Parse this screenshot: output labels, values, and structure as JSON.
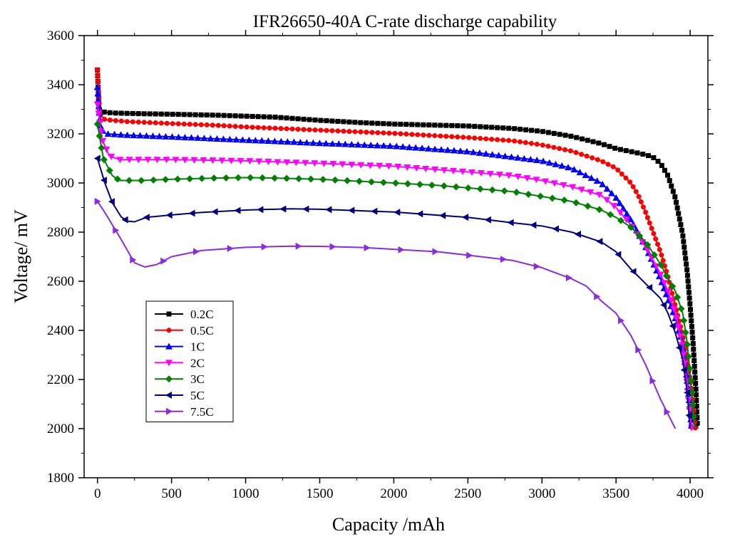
{
  "chart_data": {
    "type": "line",
    "title": "IFR26650-40A C-rate discharge capability",
    "xlabel": "Capacity /mAh",
    "ylabel": "Voltage/ mV",
    "xlim": [
      -90,
      4120
    ],
    "ylim": [
      1800,
      3600
    ],
    "xticks": [
      0,
      500,
      1000,
      1500,
      2000,
      2500,
      3000,
      3500,
      4000
    ],
    "yticks": [
      1800,
      2000,
      2200,
      2400,
      2600,
      2800,
      3000,
      3200,
      3400,
      3600
    ],
    "grid": false,
    "legend_position": "bottom-left",
    "series": [
      {
        "name": "0.2C",
        "color": "#000000",
        "marker": "square",
        "points": [
          [
            0,
            3460
          ],
          [
            10,
            3300
          ],
          [
            30,
            3290
          ],
          [
            100,
            3285
          ],
          [
            300,
            3282
          ],
          [
            500,
            3280
          ],
          [
            800,
            3276
          ],
          [
            1000,
            3272
          ],
          [
            1200,
            3268
          ],
          [
            1500,
            3255
          ],
          [
            1800,
            3245
          ],
          [
            2000,
            3240
          ],
          [
            2500,
            3232
          ],
          [
            2800,
            3222
          ],
          [
            3000,
            3210
          ],
          [
            3200,
            3190
          ],
          [
            3400,
            3160
          ],
          [
            3500,
            3140
          ],
          [
            3600,
            3128
          ],
          [
            3700,
            3115
          ],
          [
            3750,
            3105
          ],
          [
            3800,
            3080
          ],
          [
            3850,
            3030
          ],
          [
            3900,
            2940
          ],
          [
            3950,
            2790
          ],
          [
            3980,
            2640
          ],
          [
            4000,
            2500
          ],
          [
            4020,
            2350
          ],
          [
            4030,
            2250
          ],
          [
            4040,
            2150
          ],
          [
            4050,
            2000
          ]
        ]
      },
      {
        "name": "0.5C",
        "color": "#ff0000",
        "marker": "circle",
        "points": [
          [
            0,
            3460
          ],
          [
            15,
            3280
          ],
          [
            50,
            3258
          ],
          [
            200,
            3250
          ],
          [
            500,
            3242
          ],
          [
            800,
            3235
          ],
          [
            1000,
            3228
          ],
          [
            1500,
            3215
          ],
          [
            2000,
            3202
          ],
          [
            2500,
            3185
          ],
          [
            2800,
            3172
          ],
          [
            3000,
            3155
          ],
          [
            3200,
            3130
          ],
          [
            3400,
            3090
          ],
          [
            3500,
            3060
          ],
          [
            3600,
            3000
          ],
          [
            3650,
            2950
          ],
          [
            3700,
            2880
          ],
          [
            3750,
            2800
          ],
          [
            3800,
            2720
          ],
          [
            3850,
            2620
          ],
          [
            3900,
            2500
          ],
          [
            3950,
            2380
          ],
          [
            3980,
            2280
          ],
          [
            4000,
            2200
          ],
          [
            4020,
            2100
          ],
          [
            4035,
            2000
          ]
        ]
      },
      {
        "name": "1C",
        "color": "#0000ff",
        "marker": "triangle-up",
        "points": [
          [
            0,
            3390
          ],
          [
            20,
            3220
          ],
          [
            60,
            3200
          ],
          [
            200,
            3195
          ],
          [
            500,
            3188
          ],
          [
            800,
            3180
          ],
          [
            1000,
            3175
          ],
          [
            1500,
            3162
          ],
          [
            2000,
            3150
          ],
          [
            2500,
            3128
          ],
          [
            3000,
            3090
          ],
          [
            3200,
            3060
          ],
          [
            3400,
            3000
          ],
          [
            3500,
            2940
          ],
          [
            3600,
            2850
          ],
          [
            3700,
            2740
          ],
          [
            3800,
            2610
          ],
          [
            3850,
            2530
          ],
          [
            3900,
            2450
          ],
          [
            3950,
            2340
          ],
          [
            3980,
            2200
          ],
          [
            4000,
            2080
          ],
          [
            4010,
            2000
          ]
        ]
      },
      {
        "name": "2C",
        "color": "#ff00ff",
        "marker": "triangle-down",
        "points": [
          [
            0,
            3320
          ],
          [
            30,
            3180
          ],
          [
            80,
            3110
          ],
          [
            150,
            3095
          ],
          [
            500,
            3095
          ],
          [
            1000,
            3090
          ],
          [
            1500,
            3080
          ],
          [
            2000,
            3068
          ],
          [
            2500,
            3045
          ],
          [
            2800,
            3030
          ],
          [
            3000,
            3010
          ],
          [
            3200,
            2985
          ],
          [
            3400,
            2950
          ],
          [
            3500,
            2900
          ],
          [
            3600,
            2830
          ],
          [
            3700,
            2740
          ],
          [
            3800,
            2630
          ],
          [
            3850,
            2560
          ],
          [
            3900,
            2470
          ],
          [
            3950,
            2330
          ],
          [
            3980,
            2180
          ],
          [
            4000,
            2050
          ],
          [
            4010,
            2000
          ]
        ]
      },
      {
        "name": "3C",
        "color": "#008000",
        "marker": "diamond",
        "points": [
          [
            0,
            3240
          ],
          [
            40,
            3100
          ],
          [
            100,
            3030
          ],
          [
            150,
            3010
          ],
          [
            300,
            3010
          ],
          [
            500,
            3015
          ],
          [
            800,
            3020
          ],
          [
            1000,
            3022
          ],
          [
            1200,
            3020
          ],
          [
            1500,
            3015
          ],
          [
            2000,
            3000
          ],
          [
            2300,
            2990
          ],
          [
            2500,
            2980
          ],
          [
            2800,
            2965
          ],
          [
            3000,
            2945
          ],
          [
            3200,
            2925
          ],
          [
            3400,
            2890
          ],
          [
            3500,
            2860
          ],
          [
            3600,
            2820
          ],
          [
            3700,
            2760
          ],
          [
            3800,
            2670
          ],
          [
            3850,
            2610
          ],
          [
            3900,
            2560
          ],
          [
            3950,
            2470
          ],
          [
            3980,
            2350
          ],
          [
            4000,
            2220
          ],
          [
            4020,
            2080
          ],
          [
            4030,
            2000
          ]
        ]
      },
      {
        "name": "5C",
        "color": "#000080",
        "marker": "triangle-left",
        "points": [
          [
            0,
            3100
          ],
          [
            50,
            3000
          ],
          [
            100,
            2920
          ],
          [
            160,
            2862
          ],
          [
            200,
            2845
          ],
          [
            250,
            2842
          ],
          [
            330,
            2860
          ],
          [
            500,
            2870
          ],
          [
            700,
            2880
          ],
          [
            1000,
            2890
          ],
          [
            1300,
            2895
          ],
          [
            1500,
            2893
          ],
          [
            2000,
            2882
          ],
          [
            2500,
            2860
          ],
          [
            2800,
            2838
          ],
          [
            3000,
            2825
          ],
          [
            3200,
            2800
          ],
          [
            3400,
            2760
          ],
          [
            3500,
            2720
          ],
          [
            3600,
            2650
          ],
          [
            3700,
            2590
          ],
          [
            3800,
            2530
          ],
          [
            3850,
            2470
          ],
          [
            3900,
            2390
          ],
          [
            3950,
            2280
          ],
          [
            3980,
            2150
          ],
          [
            4000,
            2000
          ]
        ]
      },
      {
        "name": "7.5C",
        "color": "#8a2be2",
        "marker": "triangle-right",
        "points": [
          [
            0,
            2925
          ],
          [
            50,
            2880
          ],
          [
            150,
            2780
          ],
          [
            250,
            2675
          ],
          [
            320,
            2658
          ],
          [
            400,
            2668
          ],
          [
            500,
            2700
          ],
          [
            700,
            2725
          ],
          [
            1000,
            2738
          ],
          [
            1300,
            2743
          ],
          [
            1500,
            2742
          ],
          [
            1800,
            2737
          ],
          [
            2000,
            2730
          ],
          [
            2300,
            2720
          ],
          [
            2500,
            2706
          ],
          [
            2800,
            2685
          ],
          [
            3000,
            2655
          ],
          [
            3200,
            2610
          ],
          [
            3300,
            2580
          ],
          [
            3400,
            2520
          ],
          [
            3500,
            2470
          ],
          [
            3600,
            2380
          ],
          [
            3700,
            2260
          ],
          [
            3800,
            2120
          ],
          [
            3850,
            2060
          ],
          [
            3900,
            2000
          ]
        ]
      }
    ]
  }
}
